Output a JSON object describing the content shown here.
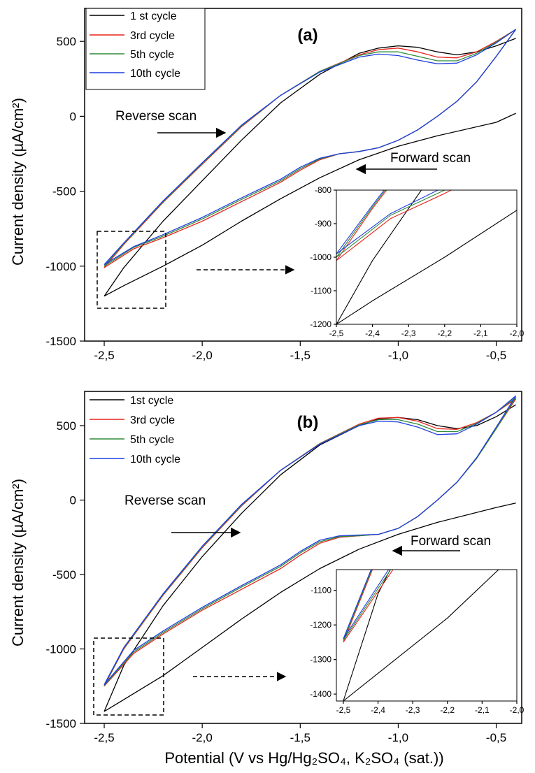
{
  "figure": {
    "ylabel": "Current density (µA/cm²)",
    "xlabel": "Potential (V vs Hg/Hg₂SO₄, K₂SO₄ (sat.))"
  },
  "chart_data": [
    {
      "type": "line",
      "panel_label": "(a)",
      "xlim": [
        -2.6,
        -0.37
      ],
      "ylim": [
        -1500,
        720
      ],
      "xticks": [
        -2.5,
        -2.0,
        -1.5,
        -1.0,
        -0.5
      ],
      "xtick_labels": [
        "-2,5",
        "-2,0",
        "-1,5",
        "-1,0",
        "-0,5"
      ],
      "yticks": [
        -1500,
        -1000,
        -500,
        0,
        500
      ],
      "ytick_labels": [
        "-1500",
        "-1000",
        "-500",
        "0",
        "500"
      ],
      "legend_position": "top-left",
      "annotations": [
        "Reverse scan",
        "Forward scan"
      ],
      "series": [
        {
          "name": "1 st cycle",
          "color": "#000000",
          "forward": {
            "x": [
              -0.4,
              -0.5,
              -0.8,
              -1.0,
              -1.2,
              -1.4,
              -1.6,
              -1.8,
              -2.0,
              -2.2,
              -2.4,
              -2.5
            ],
            "y": [
              20,
              -40,
              -130,
              -200,
              -290,
              -410,
              -550,
              -700,
              -860,
              -1000,
              -1130,
              -1200
            ]
          },
          "reverse": {
            "x": [
              -2.5,
              -2.4,
              -2.2,
              -2.0,
              -1.8,
              -1.6,
              -1.4,
              -1.2,
              -1.1,
              -1.0,
              -0.9,
              -0.8,
              -0.7,
              -0.6,
              -0.5,
              -0.4
            ],
            "y": [
              -1200,
              -1010,
              -700,
              -430,
              -160,
              90,
              280,
              420,
              455,
              470,
              460,
              430,
              410,
              430,
              470,
              520
            ]
          }
        },
        {
          "name": "3rd cycle",
          "color": "#e8251f",
          "forward": {
            "x": [
              -0.4,
              -0.5,
              -0.6,
              -0.7,
              -0.8,
              -0.9,
              -1.0,
              -1.1,
              -1.2,
              -1.3,
              -1.4,
              -1.5,
              -1.6,
              -1.8,
              -2.0,
              -2.2,
              -2.35,
              -2.5
            ],
            "y": [
              580,
              400,
              230,
              100,
              0,
              -90,
              -160,
              -210,
              -235,
              -250,
              -290,
              -360,
              -440,
              -570,
              -700,
              -810,
              -885,
              -1010
            ]
          },
          "reverse": {
            "x": [
              -2.5,
              -2.4,
              -2.2,
              -2.0,
              -1.8,
              -1.6,
              -1.4,
              -1.2,
              -1.1,
              -1.0,
              -0.9,
              -0.8,
              -0.7,
              -0.6,
              -0.5,
              -0.4
            ],
            "y": [
              -1010,
              -855,
              -575,
              -320,
              -70,
              140,
              300,
              410,
              445,
              455,
              430,
              395,
              390,
              430,
              500,
              580
            ]
          }
        },
        {
          "name": "5th cycle",
          "color": "#2e8b3a",
          "forward": {
            "x": [
              -0.4,
              -0.5,
              -0.6,
              -0.7,
              -0.8,
              -0.9,
              -1.0,
              -1.1,
              -1.2,
              -1.3,
              -1.4,
              -1.5,
              -1.6,
              -1.8,
              -2.0,
              -2.2,
              -2.35,
              -2.5
            ],
            "y": [
              580,
              400,
              230,
              100,
              0,
              -90,
              -160,
              -210,
              -235,
              -250,
              -285,
              -350,
              -430,
              -555,
              -685,
              -800,
              -875,
              -1000
            ]
          },
          "reverse": {
            "x": [
              -2.5,
              -2.4,
              -2.2,
              -2.0,
              -1.8,
              -1.6,
              -1.4,
              -1.2,
              -1.1,
              -1.0,
              -0.9,
              -0.8,
              -0.7,
              -0.6,
              -0.5,
              -0.4
            ],
            "y": [
              -1000,
              -850,
              -570,
              -315,
              -65,
              140,
              300,
              405,
              430,
              430,
              400,
              370,
              370,
              420,
              495,
              580
            ]
          }
        },
        {
          "name": "10th cycle",
          "color": "#1f3fe0",
          "forward": {
            "x": [
              -0.4,
              -0.5,
              -0.6,
              -0.7,
              -0.8,
              -0.9,
              -1.0,
              -1.1,
              -1.2,
              -1.3,
              -1.4,
              -1.5,
              -1.6,
              -1.8,
              -2.0,
              -2.2,
              -2.35,
              -2.5
            ],
            "y": [
              580,
              400,
              230,
              100,
              0,
              -90,
              -160,
              -210,
              -235,
              -250,
              -280,
              -340,
              -420,
              -545,
              -675,
              -790,
              -870,
              -990
            ]
          },
          "reverse": {
            "x": [
              -2.5,
              -2.4,
              -2.2,
              -2.0,
              -1.8,
              -1.6,
              -1.4,
              -1.2,
              -1.1,
              -1.0,
              -0.9,
              -0.8,
              -0.7,
              -0.6,
              -0.5,
              -0.4
            ],
            "y": [
              -990,
              -845,
              -565,
              -310,
              -60,
              140,
              295,
              395,
              415,
              405,
              375,
              350,
              355,
              410,
              490,
              580
            ]
          }
        }
      ],
      "inset": {
        "xlim": [
          -2.5,
          -2.0
        ],
        "ylim": [
          -1200,
          -800
        ],
        "xticks": [
          -2.5,
          -2.4,
          -2.3,
          -2.2,
          -2.1,
          -2.0
        ],
        "xtick_labels": [
          "-2,5",
          "-2,4",
          "-2,3",
          "-2,2",
          "-2,1",
          "-2,0"
        ],
        "yticks": [
          -1200,
          -1100,
          -1000,
          -900,
          -800
        ],
        "ytick_labels": [
          "-1200",
          "-1100",
          "-1000",
          "-900",
          "-800"
        ]
      }
    },
    {
      "type": "line",
      "panel_label": "(b)",
      "xlim": [
        -2.6,
        -0.37
      ],
      "ylim": [
        -1500,
        730
      ],
      "xticks": [
        -2.5,
        -2.0,
        -1.5,
        -1.0,
        -0.5
      ],
      "xtick_labels": [
        "-2,5",
        "-2,0",
        "-1,5",
        "-1,0",
        "-0,5"
      ],
      "yticks": [
        -1500,
        -1000,
        -500,
        0,
        500
      ],
      "ytick_labels": [
        "-1500",
        "-1000",
        "-500",
        "0",
        "500"
      ],
      "legend_position": "top-left",
      "annotations": [
        "Reverse scan",
        "Forward scan"
      ],
      "series": [
        {
          "name": "1st cycle",
          "color": "#000000",
          "forward": {
            "x": [
              -0.4,
              -0.5,
              -0.8,
              -1.0,
              -1.2,
              -1.4,
              -1.6,
              -1.8,
              -2.0,
              -2.2,
              -2.4,
              -2.5
            ],
            "y": [
              -20,
              -50,
              -150,
              -230,
              -330,
              -460,
              -620,
              -800,
              -990,
              -1180,
              -1340,
              -1420
            ]
          },
          "reverse": {
            "x": [
              -2.5,
              -2.4,
              -2.2,
              -2.0,
              -1.8,
              -1.6,
              -1.4,
              -1.2,
              -1.1,
              -1.0,
              -0.9,
              -0.8,
              -0.7,
              -0.6,
              -0.5,
              -0.4
            ],
            "y": [
              -1420,
              -1110,
              -710,
              -380,
              -90,
              170,
              370,
              500,
              545,
              555,
              540,
              500,
              480,
              500,
              560,
              640
            ]
          }
        },
        {
          "name": "3rd cycle",
          "color": "#e8251f",
          "forward": {
            "x": [
              -0.4,
              -0.5,
              -0.6,
              -0.7,
              -0.8,
              -0.9,
              -1.0,
              -1.1,
              -1.2,
              -1.3,
              -1.4,
              -1.5,
              -1.6,
              -1.8,
              -2.0,
              -2.2,
              -2.35,
              -2.5
            ],
            "y": [
              680,
              480,
              280,
              120,
              0,
              -110,
              -190,
              -230,
              -240,
              -250,
              -290,
              -370,
              -460,
              -600,
              -740,
              -900,
              -1030,
              -1250
            ]
          },
          "reverse": {
            "x": [
              -2.5,
              -2.4,
              -2.2,
              -2.0,
              -1.8,
              -1.6,
              -1.4,
              -1.2,
              -1.1,
              -1.0,
              -0.9,
              -0.8,
              -0.7,
              -0.6,
              -0.5,
              -0.4
            ],
            "y": [
              -1250,
              -1000,
              -640,
              -320,
              -40,
              200,
              380,
              510,
              550,
              555,
              530,
              480,
              475,
              520,
              590,
              680
            ]
          }
        },
        {
          "name": "5th cycle",
          "color": "#2e8b3a",
          "forward": {
            "x": [
              -0.4,
              -0.5,
              -0.6,
              -0.7,
              -0.8,
              -0.9,
              -1.0,
              -1.1,
              -1.2,
              -1.3,
              -1.4,
              -1.5,
              -1.6,
              -1.8,
              -2.0,
              -2.2,
              -2.35,
              -2.5
            ],
            "y": [
              690,
              480,
              280,
              120,
              0,
              -110,
              -190,
              -230,
              -240,
              -245,
              -280,
              -355,
              -445,
              -585,
              -730,
              -890,
              -1020,
              -1245
            ]
          },
          "reverse": {
            "x": [
              -2.5,
              -2.4,
              -2.2,
              -2.0,
              -1.8,
              -1.6,
              -1.4,
              -1.2,
              -1.1,
              -1.0,
              -0.9,
              -0.8,
              -0.7,
              -0.6,
              -0.5,
              -0.4
            ],
            "y": [
              -1245,
              -995,
              -635,
              -315,
              -35,
              200,
              378,
              505,
              540,
              540,
              510,
              460,
              460,
              515,
              590,
              690
            ]
          }
        },
        {
          "name": "10th cycle",
          "color": "#1f3fe0",
          "forward": {
            "x": [
              -0.4,
              -0.5,
              -0.6,
              -0.7,
              -0.8,
              -0.9,
              -1.0,
              -1.1,
              -1.2,
              -1.3,
              -1.4,
              -1.5,
              -1.6,
              -1.8,
              -2.0,
              -2.2,
              -2.35,
              -2.5
            ],
            "y": [
              700,
              490,
              285,
              120,
              0,
              -110,
              -190,
              -230,
              -235,
              -240,
              -270,
              -345,
              -435,
              -575,
              -720,
              -880,
              -1010,
              -1240
            ]
          },
          "reverse": {
            "x": [
              -2.5,
              -2.4,
              -2.2,
              -2.0,
              -1.8,
              -1.6,
              -1.4,
              -1.2,
              -1.1,
              -1.0,
              -0.9,
              -0.8,
              -0.7,
              -0.6,
              -0.5,
              -0.4
            ],
            "y": [
              -1240,
              -990,
              -630,
              -310,
              -30,
              200,
              375,
              500,
              530,
              525,
              490,
              440,
              445,
              510,
              590,
              700
            ]
          }
        }
      ],
      "inset": {
        "xlim": [
          -2.52,
          -2.0
        ],
        "ylim": [
          -1420,
          -1040
        ],
        "xticks": [
          -2.5,
          -2.4,
          -2.3,
          -2.2,
          -2.1,
          -2.0
        ],
        "xtick_labels": [
          "-2,5",
          "-2,4",
          "-2,3",
          "-2,2",
          "-2,1",
          "-2,0"
        ],
        "yticks": [
          -1400,
          -1300,
          -1200,
          -1100
        ],
        "ytick_labels": [
          "-1400",
          "-1300",
          "-1200",
          "-1100"
        ]
      }
    }
  ]
}
